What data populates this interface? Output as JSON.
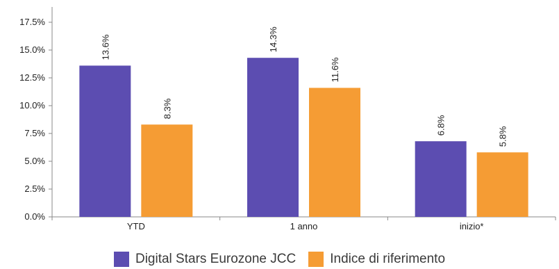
{
  "chart_data": {
    "type": "bar",
    "title": "",
    "xlabel": "",
    "ylabel": "",
    "categories": [
      "YTD",
      "1 anno",
      "inizio*"
    ],
    "series": [
      {
        "name": "Digital Stars Eurozone JCC",
        "values": [
          13.6,
          14.3,
          6.8
        ],
        "labels": [
          "13.6%",
          "14.3%",
          "6.8%"
        ],
        "color": "#5c4db1"
      },
      {
        "name": "Indice di riferimento",
        "values": [
          8.3,
          11.6,
          5.8
        ],
        "labels": [
          "8.3%",
          "11.6%",
          "5.8%"
        ],
        "color": "#f59c34"
      }
    ],
    "ylim": [
      0,
      17.5
    ],
    "yticks": [
      0,
      2.5,
      5,
      7.5,
      10,
      12.5,
      15,
      17.5
    ],
    "ytick_labels": [
      "0.0%",
      "2.5%",
      "5.0%",
      "7.5%",
      "10.0%",
      "12.5%",
      "15.0%",
      "17.5%"
    ],
    "grid": false,
    "legend_position": "bottom"
  }
}
